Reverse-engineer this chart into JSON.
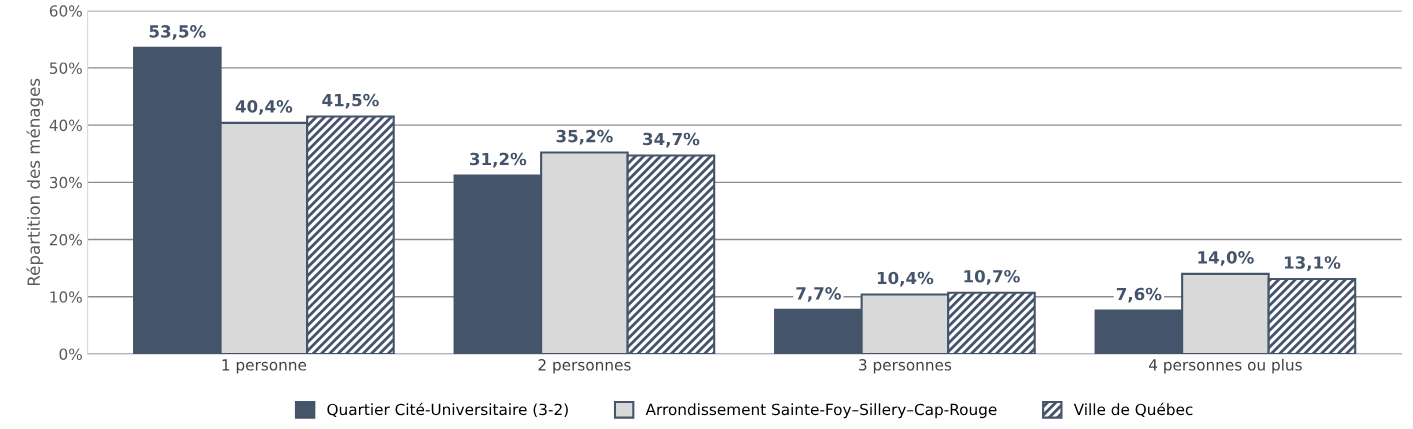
{
  "chart_data": {
    "type": "bar",
    "ylabel": "Répartition des ménages",
    "categories": [
      "1 personne",
      "2 personnes",
      "3 personnes",
      "4 personnes ou plus"
    ],
    "series": [
      {
        "name": "Quartier Cité-Universitaire (3-2)",
        "color": "#44546a",
        "values": [
          53.5,
          31.2,
          7.7,
          7.6
        ],
        "value_labels": [
          "53,5%",
          "31,2%",
          "7,7%",
          "7,6%"
        ]
      },
      {
        "name": "Arrondissement Sainte-Foy–Sillery–Cap-Rouge",
        "color": "#d9d9d9",
        "values": [
          40.4,
          35.2,
          10.4,
          14.0
        ],
        "value_labels": [
          "40,4%",
          "35,2%",
          "10,4%",
          "14,0%"
        ]
      },
      {
        "name": "Ville de Québec",
        "color": "#44546a",
        "values": [
          41.5,
          34.7,
          10.7,
          13.1
        ],
        "value_labels": [
          "41,5%",
          "34,7%",
          "10,7%",
          "13,1%"
        ]
      }
    ],
    "ylim": [
      0,
      60
    ],
    "yticks": [
      {
        "value": 0,
        "label": "0%"
      },
      {
        "value": 10,
        "label": "10%"
      },
      {
        "value": 20,
        "label": "20%"
      },
      {
        "value": 30,
        "label": "30%"
      },
      {
        "value": 40,
        "label": "40%"
      },
      {
        "value": 50,
        "label": "50%"
      },
      {
        "value": 60,
        "label": "60%"
      }
    ],
    "grid": "y",
    "legend": "bottom"
  }
}
